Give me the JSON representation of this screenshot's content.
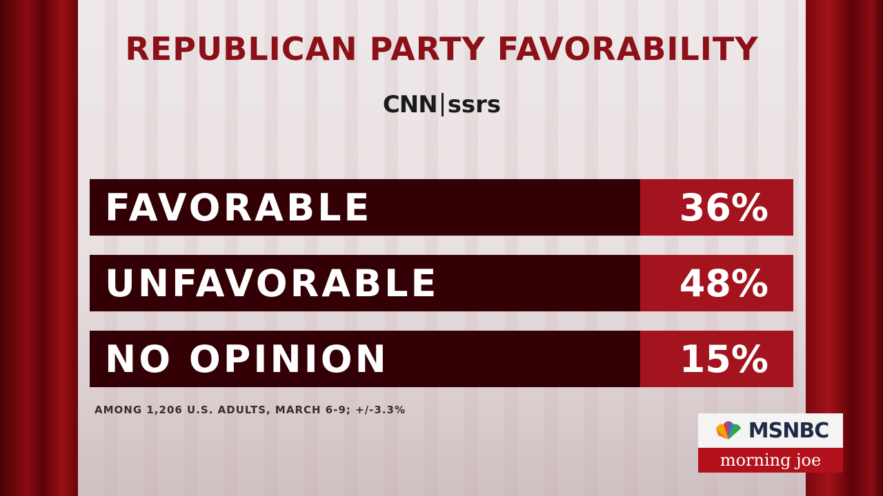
{
  "chart_data": {
    "type": "table",
    "title": "REPUBLICAN PARTY FAVORABILITY",
    "source_logo": {
      "left": "CNN",
      "right": "ssrs"
    },
    "categories": [
      "FAVORABLE",
      "UNFAVORABLE",
      "NO OPINION"
    ],
    "values": [
      36,
      48,
      15
    ],
    "value_labels": [
      "36%",
      "48%",
      "15%"
    ],
    "footnote": "AMONG 1,206 U.S. ADULTS, MARCH 6-9; +/-3.3%",
    "colors": {
      "title": "#8c1018",
      "label_bg": "#330005",
      "value_bg": "#a3141e"
    }
  },
  "broadcast_bug": {
    "network": "MSNBC",
    "show": "morning joe",
    "icon": "peacock-icon"
  }
}
